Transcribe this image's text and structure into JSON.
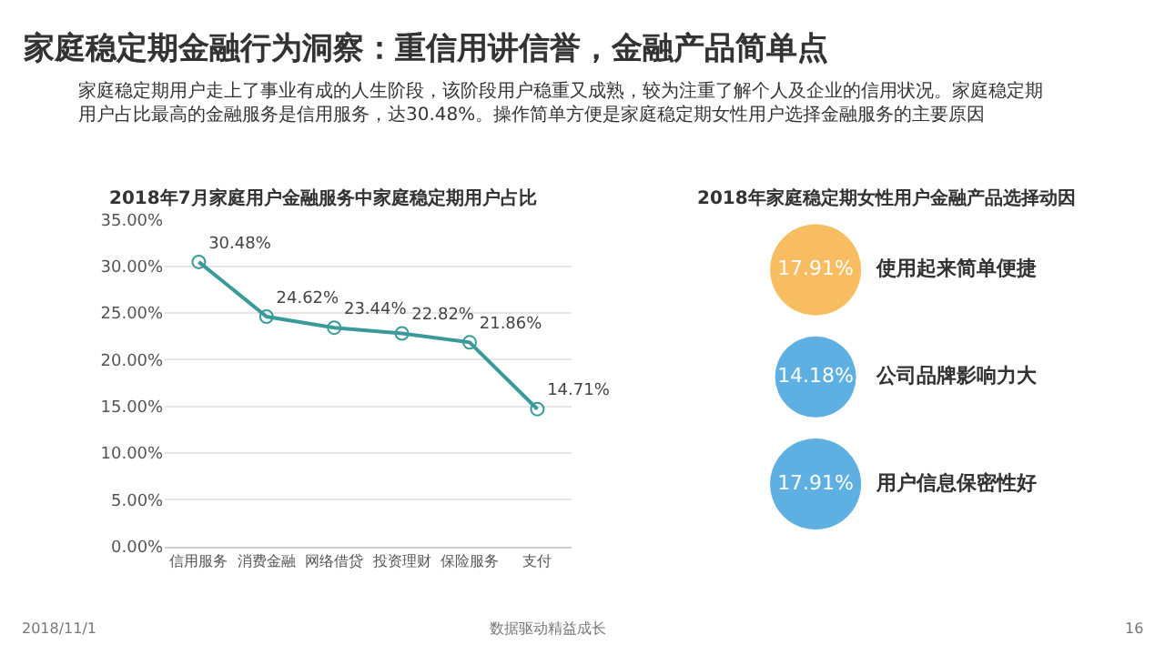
{
  "chart_data": [
    {
      "type": "line",
      "title": "2018年7月家庭用户金融服务中家庭稳定期用户占比",
      "annotations": [
        "家庭稳定期金融行为洞察：重信用讲信誉，金融产品简单点",
        "家庭稳定期用户走上了事业有成的人生阶段，该阶段用户稳重又成熟，较为注重了解个人及企业的信用状况。家庭稳定期用户占比最高的金融服务是信用服务，达30.48%。操作简单方便是家庭稳定期女性用户选择金融服务的主要原因",
        "2018/11/1",
        "数据驱动精益成长",
        "16"
      ],
      "categories": [
        "信用服务",
        "消费金融",
        "网络借贷",
        "投资理财",
        "保险服务",
        "支付"
      ],
      "series": [
        {
          "color": "#3a9a9a",
          "values": [
            30.48,
            24.62,
            23.44,
            22.82,
            21.86,
            14.71
          ],
          "value_labels": [
            "30.48%",
            "24.62%",
            "23.44%",
            "22.82%",
            "21.86%",
            "14.71%"
          ]
        }
      ],
      "ylim": [
        0,
        35
      ],
      "yticks": [
        {
          "value": 0,
          "label": "0.00%"
        },
        {
          "value": 5,
          "label": "5.00%"
        },
        {
          "value": 10,
          "label": "10.00%"
        },
        {
          "value": 15,
          "label": "15.00%"
        },
        {
          "value": 20,
          "label": "20.00%"
        },
        {
          "value": 25,
          "label": "25.00%"
        },
        {
          "value": 30,
          "label": "30.00%"
        },
        {
          "value": 35,
          "label": "35.00%"
        }
      ],
      "grid": "y",
      "marker": "circle",
      "line_style": "solid"
    },
    {
      "type": "other",
      "title": "2018年家庭稳定期女性用户金融产品选择动因",
      "categories": [
        "使用起来简单便捷",
        "公司品牌影响力大",
        "用户信息保密性好"
      ],
      "values": [
        17.91,
        14.18,
        17.91
      ],
      "value_labels": [
        "17.91%",
        "14.18%",
        "17.91%"
      ],
      "colors": [
        "#f5a11c",
        "#1b8ed6",
        "#1b8ed6"
      ]
    }
  ]
}
